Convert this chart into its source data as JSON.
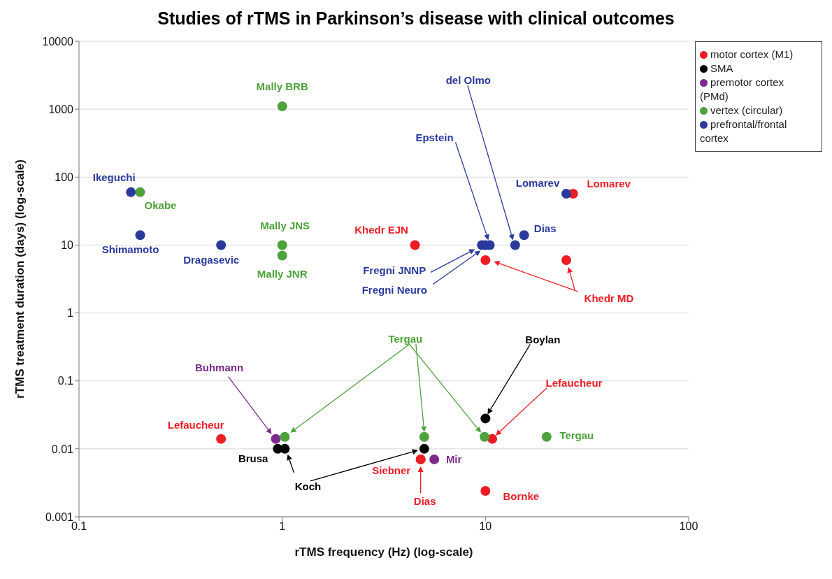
{
  "chart_data": {
    "type": "scatter",
    "title": "Studies of rTMS in Parkinson’s disease with clinical outcomes",
    "xlabel": "rTMS frequency (Hz) (log-scale)",
    "ylabel": "rTMS treatment duration (days) (log-scale)",
    "log": "xy",
    "xlim": [
      0.1,
      100
    ],
    "xticks": [
      0.1,
      1,
      10,
      100
    ],
    "ylim": [
      0.001,
      10000
    ],
    "yticks": [
      0.001,
      0.01,
      0.1,
      1,
      10,
      100,
      1000,
      10000
    ],
    "grid": "y",
    "legend": "right",
    "marker": "circle",
    "annotations": [
      "Lefaucheur",
      "Boylan",
      "Tergau",
      "Epstein",
      "del Olmo"
    ],
    "series": [
      {
        "name": "motor cortex (M1)",
        "color": "#ee1c25",
        "x": [
          0.5,
          4.5,
          27,
          10,
          25,
          10.8,
          4.8,
          4.8,
          10
        ],
        "values": [
          0.014,
          10,
          57,
          6,
          6,
          0.014,
          0.007,
          0.007,
          0.0024
        ],
        "value_labels": [
          "Lefaucheur",
          "Khedr EJN",
          "Lomarev",
          null,
          "Khedr MD",
          null,
          "Siebner",
          "Dias",
          "Bornke"
        ]
      },
      {
        "name": "SMA",
        "color": "#000000",
        "x": [
          0.95,
          1.03,
          5,
          10
        ],
        "values": [
          0.01,
          0.01,
          0.01,
          0.028
        ],
        "value_labels": [
          "Brusa",
          "Koch",
          null,
          null
        ]
      },
      {
        "name": "premotor cortex (PMd)",
        "color": "#7b2a8c",
        "x": [
          0.93,
          5.6
        ],
        "values": [
          0.014,
          0.007
        ],
        "value_labels": [
          "Buhmann",
          "Mir"
        ]
      },
      {
        "name": "vertex (circular)",
        "color": "#4da23c",
        "x": [
          1,
          0.2,
          1,
          1,
          1.03,
          5,
          9.9,
          20
        ],
        "values": [
          1100,
          60,
          10,
          7,
          0.015,
          0.015,
          0.015,
          0.015
        ],
        "value_labels": [
          "Mally BRB",
          "Okabe",
          "Mally JNS",
          "Mally JNR",
          null,
          null,
          null,
          "Tergau"
        ]
      },
      {
        "name": "prefrontal/frontal cortex",
        "color": "#2a3a9c",
        "x": [
          0.18,
          0.2,
          0.5,
          9.6,
          10,
          10.5,
          14,
          15.5,
          25
        ],
        "values": [
          60,
          14,
          10,
          10,
          10,
          10,
          10,
          14,
          57
        ],
        "value_labels": [
          "Ikeguchi",
          "Shimamoto",
          "Dragasevic",
          "Fregni JNNP",
          "Fregni Neuro",
          null,
          null,
          "Dias",
          "Lomarev"
        ]
      }
    ]
  }
}
